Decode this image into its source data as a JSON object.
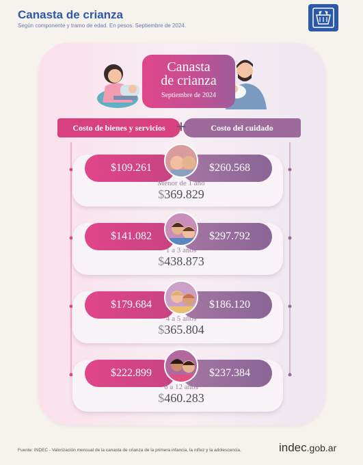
{
  "header": {
    "title": "Canasta de crianza",
    "subtitle": "Según componente y tramo de edad. En pesos. Septiembre de 2024."
  },
  "badge": {
    "icon": "basket-icon"
  },
  "card": {
    "title_line1": "Canasta",
    "title_line2": "de crianza",
    "date": "Septiembre de 2024",
    "label_goods": "Costo de bienes y servicios",
    "label_care": "Costo del cuidado",
    "plus": "+"
  },
  "rows": [
    {
      "goods": "$109.261",
      "care": "$260.568",
      "age": "Menor de 1 año",
      "total_sign": "$",
      "total": "369.829"
    },
    {
      "goods": "$141.082",
      "care": "$297.792",
      "age": "1 a 3 años",
      "total_sign": "$",
      "total": "438.873"
    },
    {
      "goods": "$179.684",
      "care": "$186.120",
      "age": "4 a 5 años",
      "total_sign": "$",
      "total": "365.804"
    },
    {
      "goods": "$222.899",
      "care": "$237.384",
      "age": "6 a 12 años",
      "total_sign": "$",
      "total": "460.283"
    }
  ],
  "footer": {
    "source": "Fuente: INDEC - Valorización mensual de la canasta de crianza de la primera infancia, la niñez y la adolescencia.",
    "logo_main": "indec",
    "logo_domain": ".gob.ar"
  },
  "colors": {
    "brand_blue": "#2b59a8",
    "goods_pink": "#d9407f",
    "care_purple": "#9d6a9b"
  }
}
